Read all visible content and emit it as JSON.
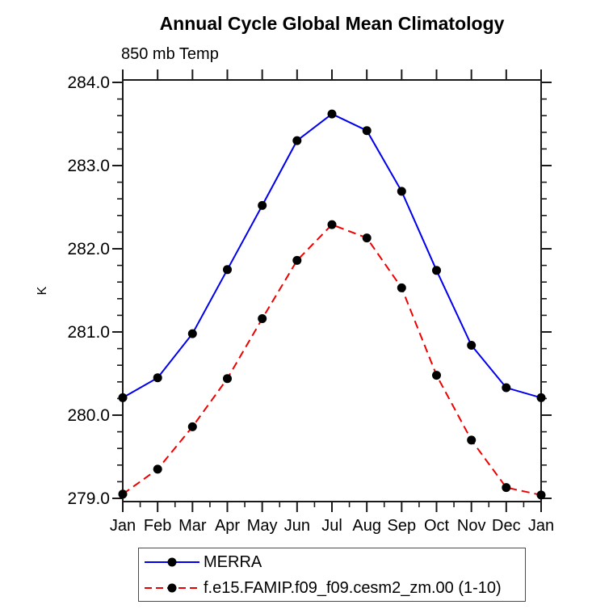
{
  "page_title": "Annual Cycle Global Mean Climatology",
  "chart_data": {
    "type": "line",
    "title": "Annual Cycle Global Mean Climatology",
    "subtitle": "850 mb Temp",
    "ylabel": "K",
    "xlabel": "",
    "categories": [
      "Jan",
      "Feb",
      "Mar",
      "Apr",
      "May",
      "Jun",
      "Jul",
      "Aug",
      "Sep",
      "Oct",
      "Nov",
      "Dec",
      "Jan"
    ],
    "y_tick_labels": [
      "284.0",
      "283.0",
      "282.0",
      "281.0",
      "280.0",
      "279.0"
    ],
    "y_ticks": [
      284.0,
      283.0,
      282.0,
      281.0,
      280.0,
      279.0
    ],
    "y_minor_step": 0.2,
    "ylim": [
      278.95,
      284.05
    ],
    "grid": false,
    "legend_position": "bottom",
    "axis_color": "#1a1a1a",
    "marker_color": "#000000",
    "series": [
      {
        "name": "MERRA",
        "color": "#0000ee",
        "style": "solid",
        "marker": "circle",
        "values": [
          280.21,
          280.45,
          280.98,
          281.75,
          282.52,
          283.3,
          283.62,
          283.42,
          282.69,
          281.74,
          280.84,
          280.33,
          280.21
        ]
      },
      {
        "name": "f.e15.FAMIP.f09_f09.cesm2_zm.00 (1-10)",
        "color": "#ee0000",
        "style": "dashed",
        "marker": "circle",
        "values": [
          279.05,
          279.35,
          279.86,
          280.44,
          281.16,
          281.86,
          282.29,
          282.13,
          281.53,
          280.48,
          279.7,
          279.13,
          279.04
        ]
      }
    ]
  }
}
